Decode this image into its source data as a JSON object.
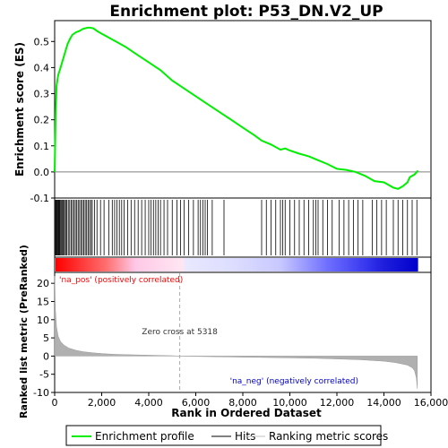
{
  "chart_data": {
    "type": "line",
    "title": "Enrichment plot: P53_DN.V2_UP",
    "es_panel": {
      "ylabel": "Enrichment score (ES)",
      "ylim": [
        -0.1,
        0.58
      ],
      "yticks": [
        -0.1,
        0.0,
        0.1,
        0.2,
        0.3,
        0.4,
        0.5
      ],
      "series": [
        {
          "name": "Enrichment profile",
          "color": "#00ee00",
          "points": [
            [
              0,
              0.0
            ],
            [
              40,
              0.2
            ],
            [
              80,
              0.33
            ],
            [
              150,
              0.37
            ],
            [
              250,
              0.4
            ],
            [
              350,
              0.43
            ],
            [
              450,
              0.46
            ],
            [
              550,
              0.49
            ],
            [
              650,
              0.51
            ],
            [
              750,
              0.525
            ],
            [
              900,
              0.535
            ],
            [
              1050,
              0.54
            ],
            [
              1200,
              0.548
            ],
            [
              1400,
              0.553
            ],
            [
              1500,
              0.553
            ],
            [
              1650,
              0.55
            ],
            [
              1800,
              0.54
            ],
            [
              2000,
              0.53
            ],
            [
              2200,
              0.52
            ],
            [
              2600,
              0.5
            ],
            [
              3000,
              0.48
            ],
            [
              3500,
              0.45
            ],
            [
              4000,
              0.42
            ],
            [
              4500,
              0.39
            ],
            [
              5000,
              0.35
            ],
            [
              5500,
              0.32
            ],
            [
              6000,
              0.29
            ],
            [
              6500,
              0.26
            ],
            [
              7000,
              0.23
            ],
            [
              7500,
              0.2
            ],
            [
              8000,
              0.17
            ],
            [
              8500,
              0.14
            ],
            [
              8800,
              0.12
            ],
            [
              9200,
              0.105
            ],
            [
              9600,
              0.085
            ],
            [
              9800,
              0.09
            ],
            [
              10000,
              0.082
            ],
            [
              10400,
              0.07
            ],
            [
              10800,
              0.06
            ],
            [
              11200,
              0.045
            ],
            [
              11600,
              0.03
            ],
            [
              12000,
              0.012
            ],
            [
              12400,
              0.008
            ],
            [
              12800,
              0.0
            ],
            [
              13200,
              -0.015
            ],
            [
              13600,
              -0.035
            ],
            [
              14000,
              -0.04
            ],
            [
              14400,
              -0.06
            ],
            [
              14600,
              -0.065
            ],
            [
              14800,
              -0.055
            ],
            [
              15000,
              -0.04
            ],
            [
              15100,
              -0.02
            ],
            [
              15300,
              -0.01
            ],
            [
              15450,
              0.005
            ]
          ]
        }
      ],
      "baseline": 0.0
    },
    "hits_panel": {
      "name": "Hits",
      "positions": [
        10,
        40,
        70,
        100,
        130,
        160,
        190,
        220,
        260,
        300,
        340,
        380,
        420,
        470,
        520,
        580,
        640,
        700,
        760,
        820,
        880,
        940,
        1000,
        1060,
        1120,
        1180,
        1240,
        1300,
        1360,
        1420,
        1480,
        1540,
        1600,
        1700,
        1800,
        1950,
        2100,
        2300,
        2450,
        2550,
        2650,
        2750,
        2850,
        2950,
        3100,
        3250,
        3400,
        3550,
        3700,
        3850,
        4000,
        4100,
        4200,
        4300,
        4400,
        4500,
        4650,
        4800,
        5000,
        5200,
        5350,
        5500,
        5700,
        5900,
        6100,
        6200,
        6300,
        6400,
        6500,
        6700,
        7200,
        8800,
        9000,
        9200,
        9400,
        9600,
        9700,
        9800,
        10000,
        10200,
        10400,
        10600,
        10800,
        11000,
        11100,
        11200,
        11400,
        11600,
        11800,
        12100,
        12300,
        12500,
        12700,
        12900,
        13100,
        13500,
        13700,
        13900,
        14100,
        14400,
        14600,
        14800,
        15000,
        15200,
        15400
      ]
    },
    "metric_panel": {
      "name": "Ranking metric scores",
      "ylabel": "Ranked list metric (PreRanked)",
      "ylim": [
        -10,
        23
      ],
      "yticks": [
        -10,
        -5,
        0,
        5,
        10,
        15,
        20
      ],
      "points": [
        [
          0,
          22
        ],
        [
          30,
          13
        ],
        [
          80,
          8
        ],
        [
          150,
          5.5
        ],
        [
          250,
          4.0
        ],
        [
          400,
          3.0
        ],
        [
          600,
          2.2
        ],
        [
          900,
          1.6
        ],
        [
          1200,
          1.2
        ],
        [
          1600,
          0.9
        ],
        [
          2000,
          0.7
        ],
        [
          2500,
          0.5
        ],
        [
          3000,
          0.4
        ],
        [
          4000,
          0.25
        ],
        [
          5000,
          0.1
        ],
        [
          5318,
          0.0
        ],
        [
          6000,
          -0.1
        ],
        [
          7000,
          -0.2
        ],
        [
          8000,
          -0.3
        ],
        [
          9000,
          -0.4
        ],
        [
          10000,
          -0.5
        ],
        [
          11000,
          -0.6
        ],
        [
          12000,
          -0.8
        ],
        [
          13000,
          -1.0
        ],
        [
          14000,
          -1.4
        ],
        [
          14500,
          -1.8
        ],
        [
          15000,
          -2.5
        ],
        [
          15200,
          -3.2
        ],
        [
          15300,
          -4.0
        ],
        [
          15380,
          -6.0
        ],
        [
          15420,
          -9.0
        ]
      ],
      "zero_cross": 5318,
      "zero_cross_label": "Zero cross at 5318",
      "pos_label": "'na_pos' (positively correlated)",
      "neg_label": "'na_neg' (negatively correlated)"
    },
    "xaxis": {
      "xlabel": "Rank in Ordered Dataset",
      "xlim": [
        0,
        16000
      ],
      "xticks": [
        0,
        2000,
        4000,
        6000,
        8000,
        10000,
        12000,
        14000,
        16000
      ],
      "xtick_labels": [
        "0",
        "2,000",
        "4,000",
        "6,000",
        "8,000",
        "10,000",
        "12,000",
        "14,000",
        "16,000"
      ],
      "n_genes": 15450
    },
    "legend": {
      "placement": "bottom",
      "entries": [
        {
          "name": "Enrichment profile",
          "color": "#00ee00"
        },
        {
          "name": "Hits",
          "color": "#000000"
        },
        {
          "name": "Ranking metric scores",
          "color": "#c0c0c0"
        }
      ]
    },
    "colors": {
      "positive": "#ff0000",
      "negative": "#0000ff",
      "pos_label": "#ff0000",
      "neg_label": "#0000cc"
    }
  }
}
